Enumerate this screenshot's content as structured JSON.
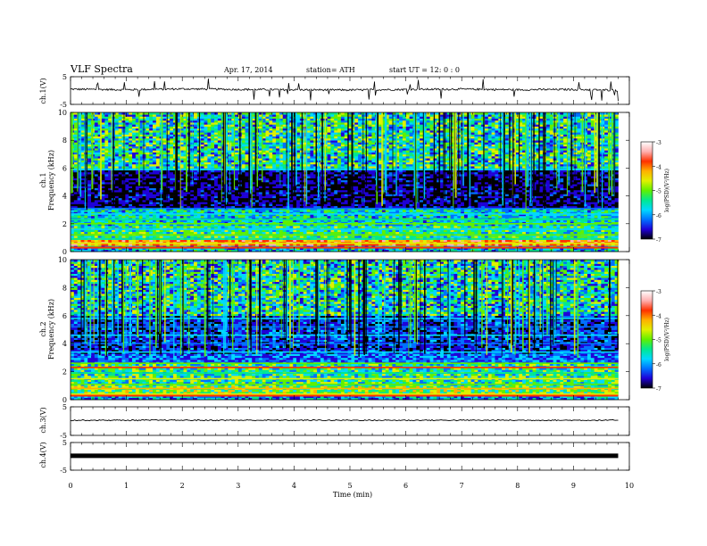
{
  "header": {
    "title": "VLF  Spectra",
    "date": "Apr. 17, 2014",
    "station": "station= ATH",
    "start": "start  UT  =   12: 0   : 0"
  },
  "colorbar": {
    "label": "log(PSD)(V²/Hz)",
    "ticks": [
      "-3",
      "-4",
      "-5",
      "-6",
      "-7"
    ],
    "colors": [
      "#000000",
      "#1f00d8",
      "#0070ff",
      "#00d8ff",
      "#00e890",
      "#60f000",
      "#e0f000",
      "#ffb000",
      "#ff3000",
      "#ffb0b0",
      "#ffffff"
    ]
  },
  "chart_data": [
    {
      "type": "line",
      "title": "",
      "ylabel": "ch.1(V)",
      "xlim": [
        0,
        10
      ],
      "ylim": [
        -5,
        5
      ],
      "y_ticks": [
        "5",
        "-5"
      ],
      "description_values": "noisy waveform around 0.5 V with frequent short spikes",
      "x": [
        0,
        1,
        2,
        3,
        4,
        5,
        6,
        7,
        8,
        9,
        9.8
      ],
      "values": [
        0.5,
        0.3,
        0.6,
        0.4,
        0.3,
        0.2,
        0.4,
        0.5,
        0.3,
        0.4,
        0.1
      ]
    },
    {
      "type": "heatmap",
      "title": "",
      "ylabel": "ch.1\nFrequency  (kHz)",
      "xlim": [
        0,
        10
      ],
      "ylim": [
        0,
        10
      ],
      "y_ticks": [
        "0",
        "2",
        "4",
        "6",
        "8",
        "10"
      ],
      "color_scale": [
        -7,
        -3
      ],
      "data_end_min": 9.8
    },
    {
      "type": "heatmap",
      "title": "",
      "ylabel": "ch.2\nFrequency  (kHz)",
      "xlim": [
        0,
        10
      ],
      "ylim": [
        0,
        10
      ],
      "y_ticks": [
        "0",
        "2",
        "4",
        "6",
        "8",
        "10"
      ],
      "color_scale": [
        -7,
        -3
      ],
      "data_end_min": 9.8
    },
    {
      "type": "line",
      "title": "",
      "ylabel": "ch.3(V)",
      "xlim": [
        0,
        10
      ],
      "ylim": [
        -5,
        5
      ],
      "y_ticks": [
        "5",
        "-5"
      ],
      "x": [
        0,
        9.8
      ],
      "values": [
        0.3,
        0.3
      ]
    },
    {
      "type": "line",
      "title": "",
      "ylabel": "ch.4(V)",
      "xlim": [
        0,
        10
      ],
      "ylim": [
        -5,
        5
      ],
      "y_ticks": [
        "5",
        "-5"
      ],
      "x": [
        0,
        9.8
      ],
      "values": [
        0.2,
        0.2
      ]
    }
  ],
  "xaxis": {
    "label": "Time  (min)",
    "ticks": [
      "0",
      "1",
      "2",
      "3",
      "4",
      "5",
      "6",
      "7",
      "8",
      "9",
      "10"
    ]
  }
}
